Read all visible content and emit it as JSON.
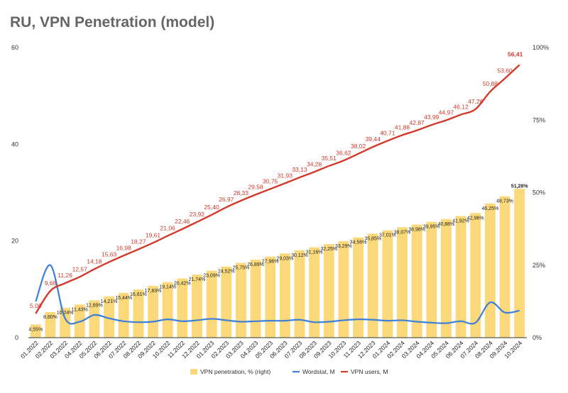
{
  "title": "RU, VPN Penetration (model)",
  "colors": {
    "bar": "#fbd97a",
    "users": "#d33a2c",
    "wordstat": "#3d7fd9",
    "title": "#666666"
  },
  "chart_data": {
    "type": "bar+line",
    "title": "RU, VPN Penetration (model)",
    "categories": [
      "01.2022",
      "02.2022",
      "03.2022",
      "04.2022",
      "05.2022",
      "06.2022",
      "07.2022",
      "08.2022",
      "09.2022",
      "10.2022",
      "11.2022",
      "12.2022",
      "01.2023",
      "02.2023",
      "03.2023",
      "04.2023",
      "05.2023",
      "06.2023",
      "07.2023",
      "08.2023",
      "09.2023",
      "10.2023",
      "11.2023",
      "12.2023",
      "01.2024",
      "02.2024",
      "03.2024",
      "04.2024",
      "05.2024",
      "06.2024",
      "07.2024",
      "08.2024",
      "09.2024",
      "10.2024"
    ],
    "y_left": {
      "ticks": [
        "0",
        "20",
        "40",
        "60"
      ],
      "ylim": [
        0,
        60
      ]
    },
    "y_right": {
      "ticks": [
        "0%",
        "25%",
        "50%",
        "75%",
        "100%"
      ],
      "ylim": [
        0,
        100
      ]
    },
    "legend_position": "bottom",
    "series": [
      {
        "name": "VPN penetration, % (right)",
        "type": "bar",
        "axis": "right",
        "values": [
          4.55,
          8.8,
          10.24,
          11.43,
          12.89,
          14.21,
          15.44,
          16.61,
          17.83,
          19.14,
          20.42,
          21.74,
          23.09,
          24.52,
          25.75,
          26.89,
          27.96,
          29.03,
          30.12,
          31.16,
          32.25,
          33.29,
          34.56,
          35.85,
          37.01,
          38.07,
          38.98,
          39.95,
          40.88,
          41.92,
          42.96,
          46.25,
          48.73,
          51.28
        ],
        "labels": [
          "4,55%",
          "8,80%",
          "10,24%",
          "11,43%",
          "12,89%",
          "14,21%",
          "15,44%",
          "16,61%",
          "17,83%",
          "19,14%",
          "20,42%",
          "21,74%",
          "23,09%",
          "24,52%",
          "25,75%",
          "26,89%",
          "27,96%",
          "29,03%",
          "30,12%",
          "31,16%",
          "32,25%",
          "33,29%",
          "34,56%",
          "35,85%",
          "37,01%",
          "38,07%",
          "38,98%",
          "39,95%",
          "40,88%",
          "41,92%",
          "42,96%",
          "46,25%",
          "48,73%",
          "51,28%"
        ]
      },
      {
        "name": "Wordstat, M",
        "type": "line",
        "axis": "left",
        "values": [
          7.5,
          15.0,
          4.0,
          3.3,
          4.7,
          4.0,
          3.4,
          3.2,
          3.3,
          3.8,
          3.4,
          3.6,
          3.9,
          3.6,
          3.3,
          3.4,
          3.5,
          3.5,
          3.7,
          3.2,
          3.3,
          3.6,
          3.8,
          3.7,
          3.5,
          3.6,
          3.3,
          3.1,
          3.0,
          3.4,
          3.1,
          7.3,
          5.2,
          5.6
        ]
      },
      {
        "name": "VPN users, M",
        "type": "line",
        "axis": "left",
        "values": [
          5.0,
          9.68,
          11.26,
          12.57,
          14.18,
          15.63,
          16.98,
          18.27,
          19.61,
          21.06,
          22.46,
          23.92,
          25.4,
          26.97,
          28.33,
          29.58,
          30.75,
          31.93,
          33.13,
          34.28,
          35.51,
          36.62,
          38.02,
          39.44,
          40.71,
          41.88,
          42.87,
          43.99,
          44.97,
          46.12,
          47.26,
          50.88,
          53.6,
          56.41
        ],
        "labels": [
          "5,00",
          "9,68",
          "11,26",
          "12,57",
          "14,18",
          "15,63",
          "16,98",
          "18,27",
          "19,61",
          "21,06",
          "22,46",
          "23,92",
          "25,40",
          "26,97",
          "28,33",
          "29,58",
          "30,75",
          "31,93",
          "33,13",
          "34,28",
          "35,51",
          "36,62",
          "38,02",
          "39,44",
          "40,71",
          "41,88",
          "42,87",
          "43,99",
          "44,97",
          "46,12",
          "47,26",
          "50,88",
          "53,60",
          "56,41"
        ]
      }
    ]
  }
}
